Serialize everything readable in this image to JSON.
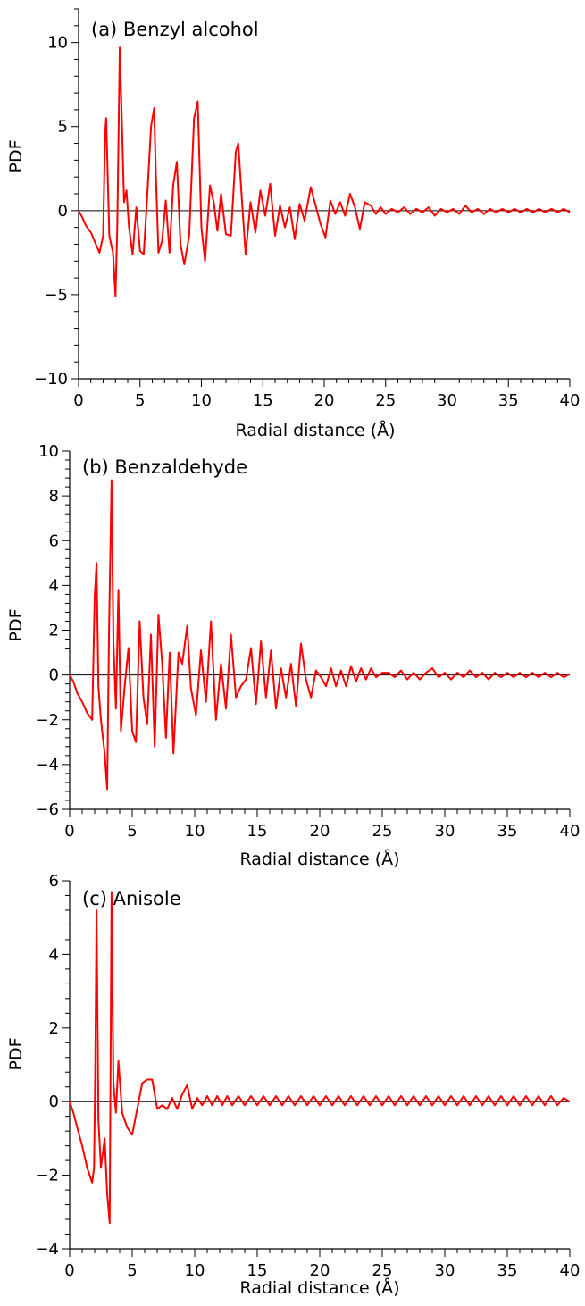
{
  "chart_data": [
    {
      "type": "line",
      "title": "(a) Benzyl alcohol",
      "xlabel": "Radial distance (Å)",
      "ylabel": "PDF",
      "xlim": [
        0,
        40
      ],
      "ylim": [
        -10,
        12
      ],
      "xticks": [
        0,
        5,
        10,
        15,
        20,
        25,
        30,
        35,
        40
      ],
      "yticks": [
        -10,
        -5,
        0,
        5,
        10
      ],
      "grid": false,
      "color": "#ff0000",
      "zero_line": true,
      "series": [
        {
          "x": [
            0,
            0.3,
            0.6,
            1.0,
            1.4,
            1.7,
            2.0,
            2.15,
            2.25,
            2.5,
            2.8,
            3.0,
            3.15,
            3.35,
            3.5,
            3.7,
            3.9,
            4.1,
            4.4,
            4.7,
            5.0,
            5.3,
            5.6,
            5.9,
            6.15,
            6.3,
            6.5,
            6.8,
            7.1,
            7.4,
            7.7,
            8.0,
            8.3,
            8.6,
            9.0,
            9.4,
            9.7,
            10.0,
            10.3,
            10.7,
            11.0,
            11.3,
            11.6,
            12.0,
            12.4,
            12.8,
            13.0,
            13.3,
            13.6,
            14.0,
            14.4,
            14.8,
            15.2,
            15.6,
            16.0,
            16.4,
            16.8,
            17.2,
            17.6,
            18.0,
            18.4,
            18.9,
            19.3,
            19.7,
            20.1,
            20.5,
            20.9,
            21.3,
            21.7,
            22.1,
            22.5,
            22.9,
            23.3,
            23.8,
            24.2,
            24.6,
            25.0,
            25.5,
            26.0,
            26.5,
            27.0,
            27.5,
            28.0,
            28.5,
            29.0,
            29.5,
            30.0,
            30.5,
            31.0,
            31.5,
            32.0,
            32.5,
            33.0,
            33.5,
            34.0,
            34.5,
            35.0,
            35.5,
            36.0,
            36.5,
            37.0,
            37.5,
            38.0,
            38.5,
            39.0,
            39.5,
            40.0
          ],
          "y": [
            0,
            -0.4,
            -0.9,
            -1.3,
            -2.0,
            -2.5,
            -1.5,
            4.5,
            5.5,
            -1.5,
            -2.5,
            -5.1,
            -1.0,
            9.7,
            6.0,
            0.5,
            1.2,
            -1.0,
            -2.6,
            0.2,
            -2.4,
            -2.6,
            1.0,
            5.0,
            6.1,
            2.0,
            -2.5,
            -1.8,
            0.6,
            -2.5,
            1.5,
            2.9,
            -2.0,
            -3.2,
            -1.5,
            5.5,
            6.5,
            -1.0,
            -3.0,
            1.5,
            0.5,
            -1.2,
            1.0,
            -1.4,
            -1.5,
            3.5,
            4.0,
            0.6,
            -2.6,
            0.5,
            -1.3,
            1.2,
            -0.3,
            1.6,
            -1.5,
            0.3,
            -1.0,
            0.2,
            -1.7,
            0.4,
            -0.6,
            1.4,
            0.3,
            -0.8,
            -1.6,
            0.6,
            -0.2,
            0.5,
            -0.3,
            1.0,
            0.2,
            -1.1,
            0.5,
            0.3,
            -0.2,
            0.2,
            -0.2,
            0.1,
            -0.1,
            0.2,
            -0.2,
            0.1,
            -0.1,
            0.2,
            -0.3,
            0.1,
            -0.1,
            0.1,
            -0.2,
            0.3,
            -0.1,
            0.1,
            -0.2,
            0.1,
            -0.1,
            0.1,
            -0.1,
            0.1,
            -0.1,
            0.1,
            -0.1,
            0.1,
            -0.1,
            0.1,
            -0.1,
            0.1,
            -0.1
          ]
        }
      ]
    },
    {
      "type": "line",
      "title": "(b) Benzaldehyde",
      "xlabel": "Radial distance (Å)",
      "ylabel": "PDF",
      "xlim": [
        0,
        40
      ],
      "ylim": [
        -6,
        10
      ],
      "xticks": [
        0,
        5,
        10,
        15,
        20,
        25,
        30,
        35,
        40
      ],
      "yticks": [
        -6,
        -4,
        -2,
        0,
        2,
        4,
        6,
        8,
        10
      ],
      "grid": false,
      "color": "#ff0000",
      "zero_line": true,
      "series": [
        {
          "x": [
            0,
            0.3,
            0.6,
            1.0,
            1.4,
            1.8,
            2.0,
            2.15,
            2.3,
            2.5,
            2.8,
            3.0,
            3.15,
            3.35,
            3.5,
            3.7,
            3.9,
            4.1,
            4.4,
            4.7,
            5.0,
            5.3,
            5.6,
            5.9,
            6.2,
            6.5,
            6.8,
            7.1,
            7.4,
            7.7,
            8.0,
            8.3,
            8.7,
            9.0,
            9.4,
            9.7,
            10.1,
            10.5,
            10.9,
            11.3,
            11.7,
            12.1,
            12.5,
            12.9,
            13.3,
            13.7,
            14.1,
            14.5,
            14.9,
            15.3,
            15.7,
            16.1,
            16.5,
            16.9,
            17.3,
            17.7,
            18.1,
            18.5,
            18.9,
            19.3,
            19.7,
            20.1,
            20.5,
            20.9,
            21.3,
            21.7,
            22.1,
            22.5,
            22.9,
            23.3,
            23.7,
            24.1,
            24.5,
            25.0,
            25.5,
            26.0,
            26.5,
            27.0,
            27.5,
            28.0,
            28.5,
            29.0,
            29.5,
            30.0,
            30.5,
            31.0,
            31.5,
            32.0,
            32.5,
            33.0,
            33.5,
            34.0,
            34.5,
            35.0,
            35.5,
            36.0,
            36.5,
            37.0,
            37.5,
            38.0,
            38.5,
            39.0,
            39.5,
            40.0
          ],
          "y": [
            0,
            -0.3,
            -0.8,
            -1.2,
            -1.7,
            -2.0,
            3.5,
            5.0,
            -0.5,
            -2.0,
            -3.5,
            -5.1,
            2.0,
            8.7,
            1.5,
            -1.5,
            3.8,
            -2.5,
            -0.5,
            1.2,
            -2.5,
            -3.0,
            2.4,
            -1.0,
            -2.2,
            1.8,
            -3.2,
            2.7,
            0.5,
            -2.8,
            1.0,
            -3.5,
            1.0,
            0.5,
            2.2,
            -0.6,
            -1.8,
            1.1,
            -1.2,
            2.4,
            -2.0,
            0.5,
            -1.5,
            1.8,
            -1.0,
            -0.5,
            -0.2,
            1.2,
            -1.3,
            1.5,
            -1.0,
            1.1,
            -1.5,
            0.3,
            -1.0,
            0.5,
            -1.4,
            1.4,
            -0.2,
            -1.0,
            0.2,
            -0.1,
            -0.5,
            0.3,
            -0.5,
            0.2,
            -0.5,
            0.4,
            -0.3,
            0.3,
            -0.2,
            0.3,
            -0.1,
            0.1,
            0.1,
            -0.1,
            0.2,
            -0.2,
            0.1,
            -0.2,
            0.1,
            0.3,
            -0.1,
            0.1,
            -0.2,
            0.1,
            -0.1,
            0.2,
            -0.1,
            0.1,
            -0.2,
            0.1,
            -0.1,
            0.1,
            -0.1,
            0.1,
            -0.1,
            0.1,
            -0.1,
            0.1,
            -0.1,
            0.1,
            -0.1,
            0.05
          ]
        }
      ]
    },
    {
      "type": "line",
      "title": "(c) Anisole",
      "xlabel": "Radial distance (Å)",
      "ylabel": "PDF",
      "xlim": [
        0,
        40
      ],
      "ylim": [
        -4,
        6
      ],
      "xticks": [
        0,
        5,
        10,
        15,
        20,
        25,
        30,
        35,
        40
      ],
      "yticks": [
        -4,
        -2,
        0,
        2,
        4,
        6
      ],
      "grid": false,
      "color": "#ff0000",
      "zero_line": true,
      "series": [
        {
          "x": [
            0,
            0.3,
            0.6,
            1.0,
            1.4,
            1.8,
            1.95,
            2.05,
            2.15,
            2.3,
            2.5,
            2.8,
            3.0,
            3.2,
            3.35,
            3.5,
            3.7,
            3.9,
            4.2,
            4.6,
            5.0,
            5.4,
            5.8,
            6.2,
            6.6,
            7.0,
            7.4,
            7.8,
            8.2,
            8.6,
            9.0,
            9.4,
            9.8,
            10.2,
            10.6,
            11.0,
            11.4,
            11.8,
            12.2,
            12.6,
            13.0,
            13.5,
            14.0,
            14.5,
            15.0,
            15.5,
            16.0,
            16.5,
            17.0,
            17.5,
            18.0,
            18.5,
            19.0,
            19.5,
            20.0,
            20.5,
            21.0,
            21.5,
            22.0,
            22.5,
            23.0,
            23.5,
            24.0,
            24.5,
            25.0,
            25.5,
            26.0,
            26.5,
            27.0,
            27.5,
            28.0,
            28.5,
            29.0,
            29.5,
            30.0,
            30.5,
            31.0,
            31.5,
            32.0,
            32.5,
            33.0,
            33.5,
            34.0,
            34.5,
            35.0,
            35.5,
            36.0,
            36.5,
            37.0,
            37.5,
            38.0,
            38.5,
            39.0,
            39.5,
            40.0
          ],
          "y": [
            0,
            -0.3,
            -0.7,
            -1.2,
            -1.8,
            -2.2,
            -1.8,
            1.0,
            5.2,
            -0.5,
            -1.8,
            -1.0,
            -2.5,
            -3.3,
            5.7,
            0.5,
            -0.3,
            1.1,
            -0.3,
            -0.7,
            -0.9,
            -0.2,
            0.5,
            0.6,
            0.6,
            -0.2,
            -0.1,
            -0.2,
            0.1,
            -0.2,
            0.2,
            0.45,
            -0.2,
            0.1,
            -0.1,
            0.15,
            -0.1,
            0.15,
            -0.1,
            0.15,
            -0.1,
            0.15,
            -0.1,
            0.15,
            -0.1,
            0.15,
            -0.1,
            0.15,
            -0.1,
            0.15,
            -0.1,
            0.15,
            -0.1,
            0.15,
            -0.1,
            0.15,
            -0.1,
            0.15,
            -0.1,
            0.15,
            -0.1,
            0.15,
            -0.1,
            0.15,
            -0.1,
            0.15,
            -0.1,
            0.15,
            -0.1,
            0.15,
            -0.1,
            0.15,
            -0.1,
            0.15,
            -0.1,
            0.15,
            -0.1,
            0.15,
            -0.1,
            0.15,
            -0.1,
            0.15,
            -0.1,
            0.15,
            -0.1,
            0.15,
            -0.1,
            0.15,
            -0.1,
            0.15,
            -0.1,
            0.15,
            -0.1,
            0.1,
            0
          ]
        }
      ]
    }
  ]
}
